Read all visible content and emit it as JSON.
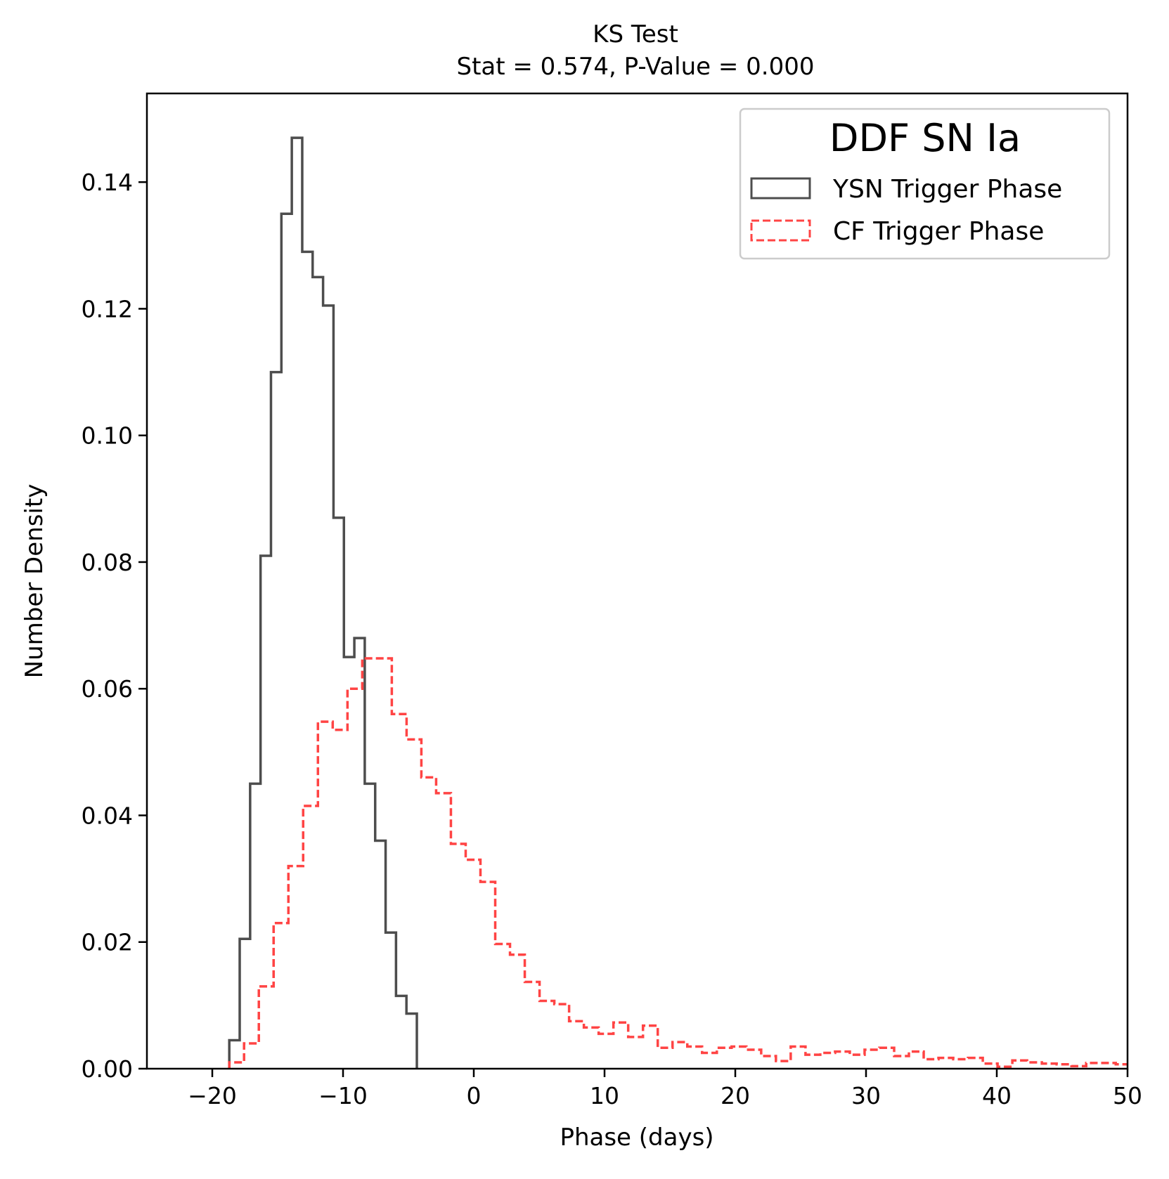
{
  "chart_data": {
    "type": "histogram",
    "title": "KS Test",
    "subtitle": "Stat = 0.574, P-Value = 0.000",
    "xlabel": "Phase (days)",
    "ylabel": "Number Density",
    "xlim": [
      -25,
      50
    ],
    "ylim": [
      0,
      0.154
    ],
    "xticks": [
      -20,
      -10,
      0,
      10,
      20,
      30,
      40,
      50
    ],
    "xtick_labels": [
      "−20",
      "−10",
      "0",
      "10",
      "20",
      "30",
      "40",
      "50"
    ],
    "yticks": [
      0,
      0.02,
      0.04,
      0.06,
      0.08,
      0.1,
      0.12,
      0.14
    ],
    "ytick_labels": [
      "0.00",
      "0.02",
      "0.04",
      "0.06",
      "0.08",
      "0.10",
      "0.12",
      "0.14"
    ],
    "grid": false,
    "legend": {
      "title": "DDF SN Ia",
      "placement": "top-right"
    },
    "series": [
      {
        "name": "YSN Trigger Phase",
        "style": "solid-step",
        "color": "#4d4d4d",
        "bin_start": -18.7,
        "bin_width": 0.797,
        "values": [
          0.0045,
          0.0205,
          0.045,
          0.081,
          0.11,
          0.135,
          0.147,
          0.129,
          0.125,
          0.1205,
          0.087,
          0.065,
          0.068,
          0.045,
          0.036,
          0.0215,
          0.0115,
          0.0087
        ]
      },
      {
        "name": "CF Trigger Phase",
        "style": "dashed-step",
        "color": "#ff4444",
        "bin_start": -18.7,
        "bin_width": 1.13,
        "values": [
          0.001,
          0.004,
          0.013,
          0.023,
          0.032,
          0.0415,
          0.0548,
          0.0535,
          0.06,
          0.0648,
          0.0648,
          0.056,
          0.052,
          0.046,
          0.0435,
          0.0355,
          0.033,
          0.0295,
          0.0197,
          0.018,
          0.0137,
          0.0107,
          0.0102,
          0.0075,
          0.0065,
          0.0055,
          0.0073,
          0.005,
          0.0068,
          0.0033,
          0.0042,
          0.0035,
          0.0025,
          0.0033,
          0.0035,
          0.003,
          0.002,
          0.0012,
          0.0035,
          0.0022,
          0.0025,
          0.0027,
          0.0022,
          0.003,
          0.0033,
          0.002,
          0.0027,
          0.0015,
          0.0017,
          0.0015,
          0.0017,
          0.0008,
          0.0003,
          0.0013,
          0.001,
          0.0008,
          0.0007,
          0.0004,
          0.0009,
          0.0009,
          0.0007
        ]
      }
    ]
  }
}
